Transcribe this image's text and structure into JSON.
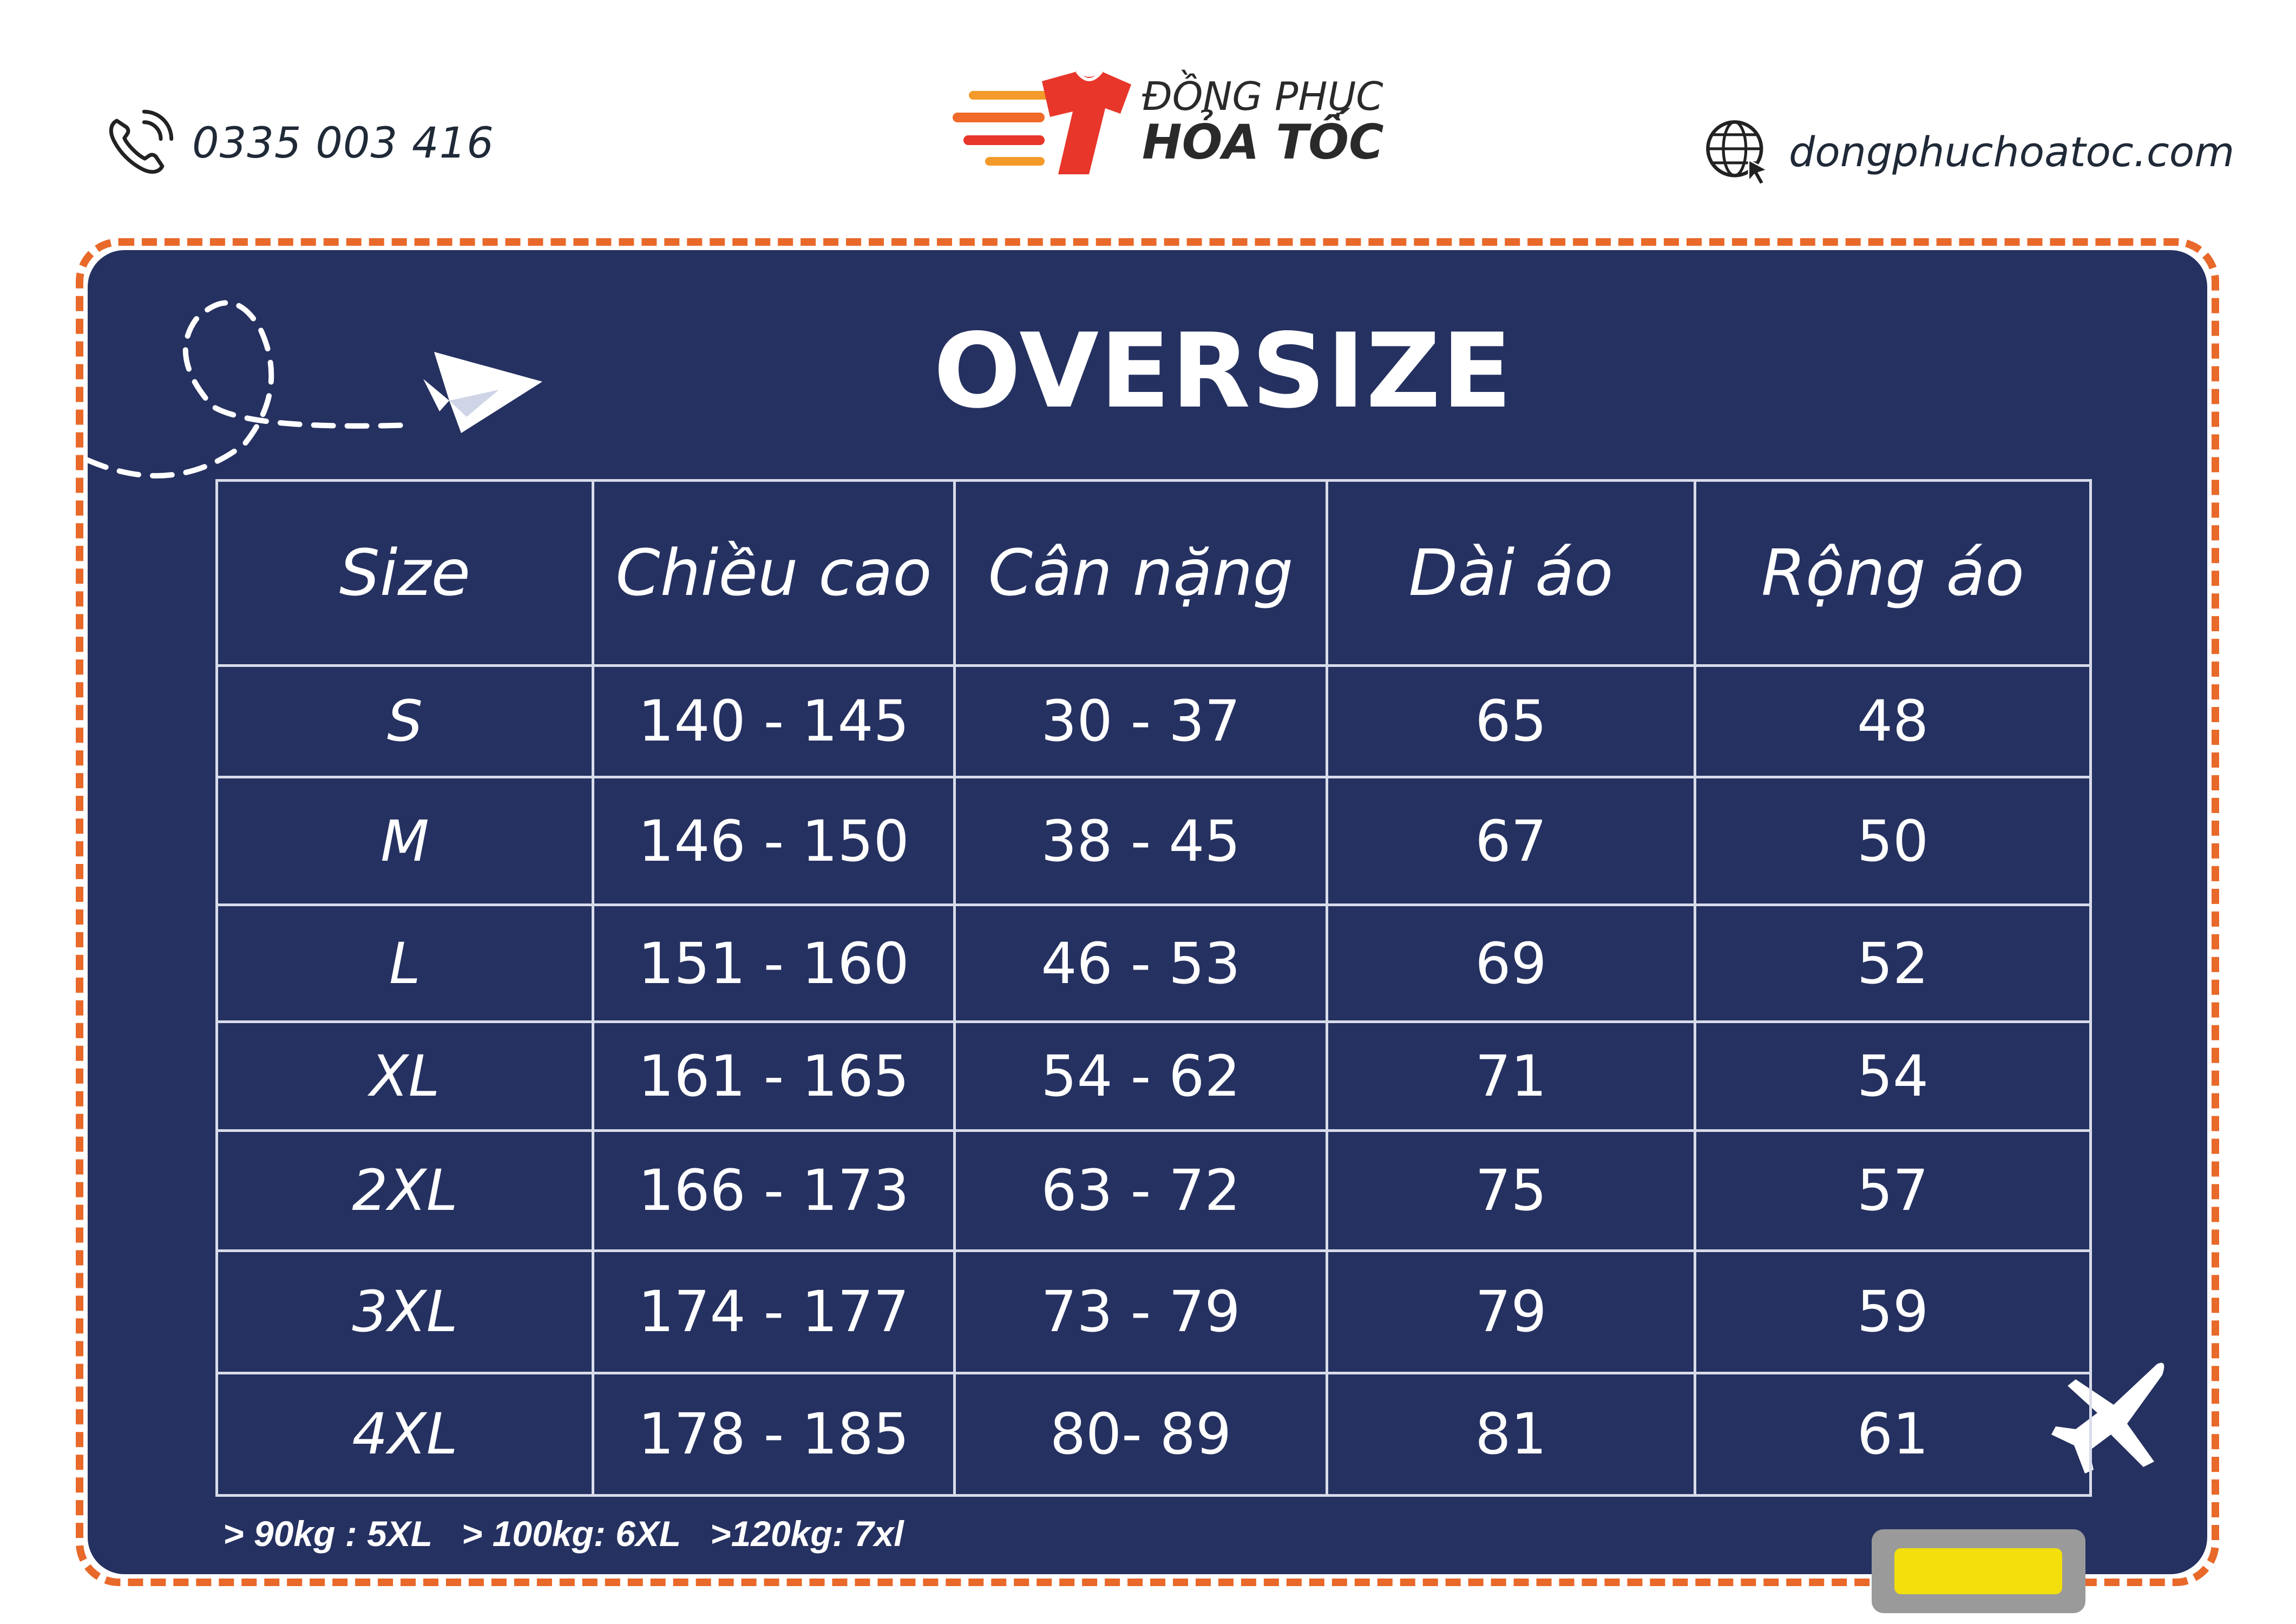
{
  "header": {
    "phone_icon": "phone-ringing-icon",
    "phone": "0335 003 416",
    "brand_line1": "ĐỒNG PHỤC",
    "brand_line2": "HỎA TỐC",
    "web_icon": "globe-cursor-icon",
    "website": "dongphuchoatoc.com"
  },
  "title": "OVERSIZE",
  "table": {
    "headers": [
      "Size",
      "Chiều cao",
      "Cân nặng",
      "Dài áo",
      "Rộng áo"
    ],
    "rows": [
      [
        "S",
        "140 - 145",
        "30 - 37",
        "65",
        "48"
      ],
      [
        "M",
        "146 - 150",
        "38 - 45",
        "67",
        "50"
      ],
      [
        "L",
        "151 - 160",
        "46 - 53",
        "69",
        "52"
      ],
      [
        "XL",
        "161 - 165",
        "54 - 62",
        "71",
        "54"
      ],
      [
        "2XL",
        "166 - 173",
        "63 - 72",
        "75",
        "57"
      ],
      [
        "3XL",
        "174 - 177",
        "73 - 79",
        "79",
        "59"
      ],
      [
        "4XL",
        "178 - 185",
        "80- 89",
        "81",
        "61"
      ]
    ]
  },
  "footnote": "> 90kg : 5XL   > 100kg: 6XL   >120kg: 7xl",
  "colors": {
    "panel": "#253160",
    "border_accent": "#e8692a",
    "logo_red": "#e8362a",
    "logo_orange": "#f39a2a",
    "badge_yellow": "#f2df0c"
  },
  "decorations": [
    "paper-plane-icon",
    "airplane-icon"
  ]
}
